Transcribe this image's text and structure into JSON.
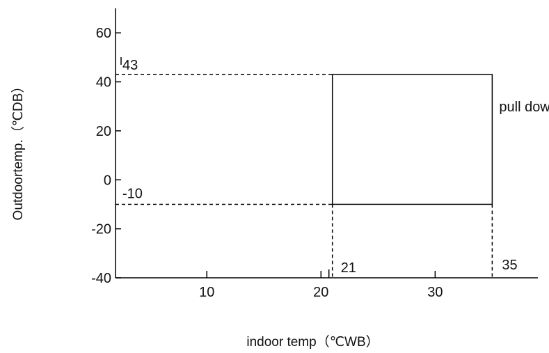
{
  "chart_data": {
    "type": "area",
    "title": "",
    "xlabel": "indoor temp（℃WB）",
    "ylabel": "Outdoortemp.（℃DB）",
    "x_ticks": [
      10,
      20,
      30
    ],
    "y_ticks": [
      60,
      40,
      20,
      0,
      -20,
      -40
    ],
    "xlim": [
      2,
      39
    ],
    "ylim": [
      -40,
      70
    ],
    "grid": false,
    "region": {
      "name": "pull down",
      "x_min": 21,
      "x_max": 35,
      "y_min": -10,
      "y_max": 43
    },
    "annotations": {
      "y_high": "43",
      "y_low": "-10",
      "x_low": "21",
      "x_high": "35",
      "region_label": "pull down"
    }
  }
}
